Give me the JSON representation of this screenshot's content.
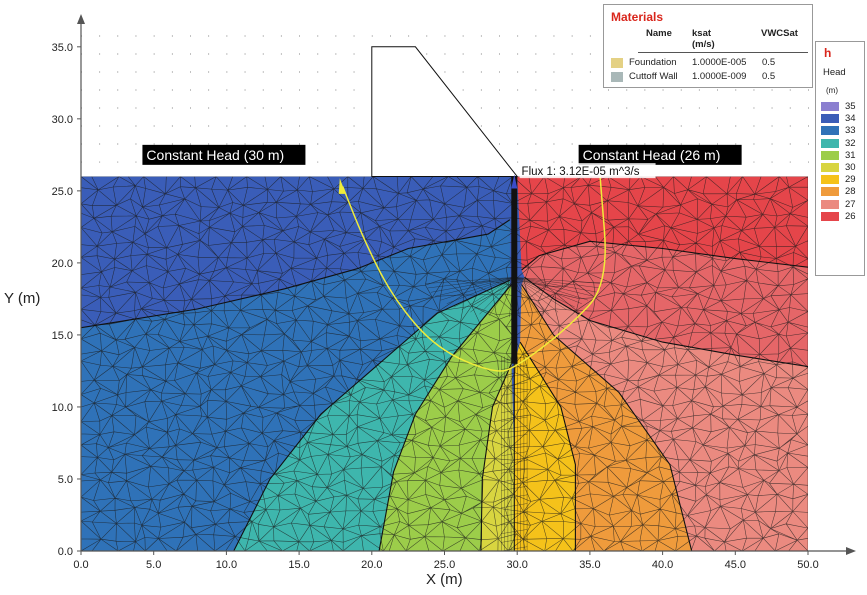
{
  "chart_data": {
    "type": "heatmap",
    "xlabel": "X (m)",
    "ylabel": "Y (m)",
    "xlim": [
      0,
      50
    ],
    "ylim": [
      0,
      37
    ],
    "x_ticks": [
      "0.0",
      "5.0",
      "10.0",
      "15.0",
      "20.0",
      "25.0",
      "30.0",
      "35.0",
      "40.0",
      "45.0",
      "50.0"
    ],
    "y_ticks": [
      "0.0",
      "5.0",
      "10.0",
      "15.0",
      "20.0",
      "25.0",
      "30.0",
      "35.0"
    ],
    "grid": "dotted",
    "domain_top": 26,
    "dam_outline": [
      [
        20.0,
        26.0
      ],
      [
        20.0,
        35.0
      ],
      [
        23.0,
        35.0
      ],
      [
        30.0,
        26.0
      ]
    ],
    "cutoff_wall": {
      "x": 29.8,
      "y_bottom": 13.0,
      "y_top": 26.0
    },
    "flow_path": [
      [
        18.0,
        25.3
      ],
      [
        19.5,
        21.5
      ],
      [
        21.5,
        17.5
      ],
      [
        24.5,
        14.0
      ],
      [
        28.5,
        12.3
      ],
      [
        30.0,
        12.8
      ],
      [
        33.5,
        15.5
      ],
      [
        36.3,
        18.5
      ],
      [
        35.7,
        26.0
      ]
    ],
    "contours": [
      {
        "value": 35,
        "color": "#8b7fd0",
        "points": []
      },
      {
        "value": 34,
        "color": "#3a5db8",
        "points": [
          [
            0.0,
            15.5
          ],
          [
            8.0,
            16.8
          ],
          [
            14.0,
            18.2
          ],
          [
            19.0,
            19.6
          ],
          [
            22.5,
            21.0
          ],
          [
            28.0,
            22.0
          ],
          [
            29.5,
            23.0
          ]
        ]
      },
      {
        "value": 33,
        "color": "#2f72b8",
        "points": [
          [
            10.5,
            0.0
          ],
          [
            13.0,
            5.0
          ],
          [
            16.5,
            9.5
          ],
          [
            20.5,
            13.0
          ],
          [
            24.5,
            16.5
          ],
          [
            29.5,
            18.8
          ]
        ]
      },
      {
        "value": 32,
        "color": "#3eb6ad",
        "points": [
          [
            20.5,
            0.0
          ],
          [
            21.5,
            5.5
          ],
          [
            23.0,
            9.5
          ],
          [
            25.5,
            13.5
          ],
          [
            29.6,
            18.5
          ]
        ]
      },
      {
        "value": 31,
        "color": "#9ccd4a",
        "points": [
          [
            27.5,
            0.0
          ],
          [
            27.6,
            5.0
          ],
          [
            28.3,
            10.0
          ],
          [
            29.6,
            13.0
          ]
        ]
      },
      {
        "value": 30,
        "color": "#d8d540",
        "points": [
          [
            29.8,
            0.0
          ],
          [
            29.8,
            13.0
          ]
        ]
      },
      {
        "value": 29,
        "color": "#f5c21a",
        "points": [
          [
            34.0,
            0.0
          ],
          [
            34.0,
            6.0
          ],
          [
            33.0,
            10.0
          ],
          [
            30.2,
            14.5
          ]
        ]
      },
      {
        "value": 28,
        "color": "#ef9b3c",
        "points": [
          [
            42.0,
            0.0
          ],
          [
            40.5,
            6.0
          ],
          [
            37.0,
            11.0
          ],
          [
            32.5,
            15.0
          ],
          [
            30.3,
            18.5
          ]
        ]
      },
      {
        "value": 27,
        "color": "#eb8a80",
        "points": [
          [
            50.0,
            12.8
          ],
          [
            45.0,
            13.6
          ],
          [
            40.0,
            14.5
          ],
          [
            35.0,
            16.0
          ],
          [
            32.5,
            17.5
          ],
          [
            30.5,
            19.0
          ]
        ]
      },
      {
        "value": 26,
        "color": "#e5454a",
        "points": [
          [
            50.0,
            19.7
          ],
          [
            45.0,
            20.3
          ],
          [
            40.0,
            21.0
          ],
          [
            35.0,
            21.5
          ],
          [
            31.5,
            20.5
          ],
          [
            30.3,
            19.5
          ]
        ]
      }
    ],
    "annotations": [
      {
        "text": "Constant Head (30 m)",
        "x": 4.5,
        "y": 27.5
      },
      {
        "text": "Constant Head (26 m)",
        "x": 34.5,
        "y": 27.5
      },
      {
        "text": "Flux 1: 3.12E-05 m^3/s",
        "x": 30.3,
        "y": 26.3
      }
    ]
  },
  "materials_legend": {
    "title": "Materials",
    "columns": [
      "Name",
      "ksat\n(m/s)",
      "VWCSat"
    ],
    "col_name": "Name",
    "col_ksat": "ksat",
    "col_ksat_unit": "(m/s)",
    "col_vwc": "VWCSat",
    "rows": [
      {
        "name": "Foundation",
        "ksat": "1.0000E-005",
        "vwc": "0.5",
        "color": "#e4d184"
      },
      {
        "name": "Cuttoff Wall",
        "ksat": "1.0000E-009",
        "vwc": "0.5",
        "color": "#a9b8b8"
      }
    ]
  },
  "head_legend": {
    "title": "h",
    "subtitle": "Head",
    "unit": "(m)",
    "items": [
      {
        "value": "35",
        "color": "#8b7fd0"
      },
      {
        "value": "34",
        "color": "#3a5db8"
      },
      {
        "value": "33",
        "color": "#2f72b8"
      },
      {
        "value": "32",
        "color": "#3eb6ad"
      },
      {
        "value": "31",
        "color": "#9ccd4a"
      },
      {
        "value": "30",
        "color": "#d8d540"
      },
      {
        "value": "29",
        "color": "#f5c21a"
      },
      {
        "value": "28",
        "color": "#ef9b3c"
      },
      {
        "value": "27",
        "color": "#eb8a80"
      },
      {
        "value": "26",
        "color": "#e5454a"
      }
    ]
  },
  "colors": {
    "head_30": "#3a5db8",
    "head_26": "#e5454a",
    "flow_path": "#f0ec3a",
    "mesh": "#1b1b1b"
  }
}
